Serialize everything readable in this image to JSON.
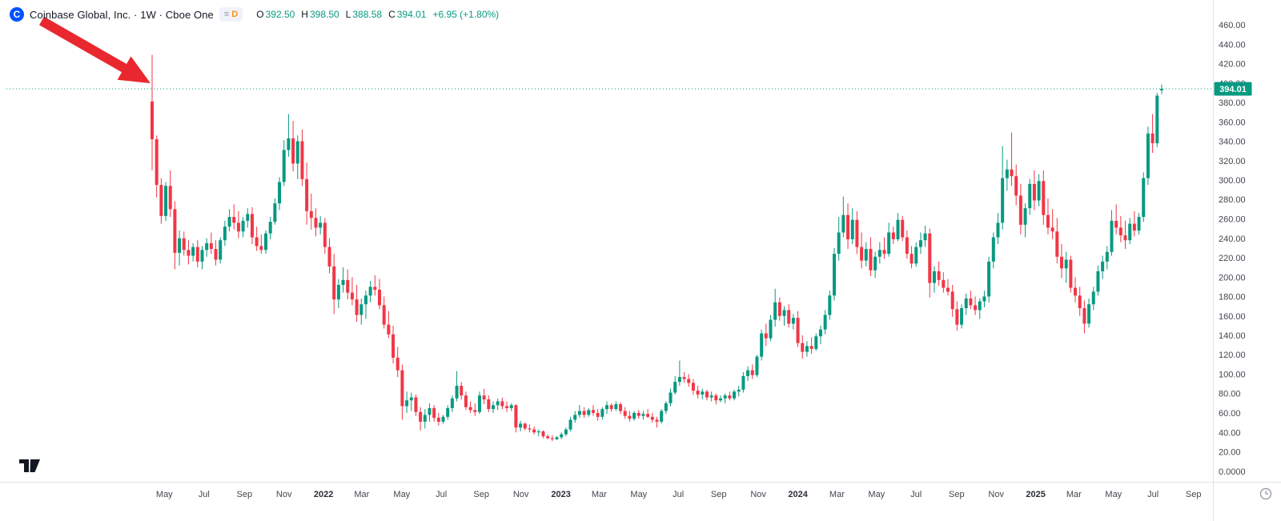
{
  "header": {
    "logo_letter": "C",
    "title": "Coinbase Global, Inc. · 1W · Cboe One",
    "data_badge": {
      "icon": "≡",
      "letter": "D"
    },
    "ohlc": {
      "open_label": "O",
      "open": "392.50",
      "high_label": "H",
      "high": "398.50",
      "low_label": "L",
      "low": "388.58",
      "close_label": "C",
      "close": "394.01",
      "change": "+6.95 (+1.80%)"
    }
  },
  "colors": {
    "up": "#089981",
    "down": "#f23645",
    "brand_blue": "#0052ff",
    "badge_d_orange": "#f7931a",
    "arrow_red": "#e8282e",
    "last_price_bg": "#089981",
    "axis_text": "#42464e"
  },
  "price_scale": {
    "labels": [
      "460.00",
      "440.00",
      "420.00",
      "400.00",
      "380.00",
      "360.00",
      "340.00",
      "320.00",
      "300.00",
      "280.00",
      "260.00",
      "240.00",
      "220.00",
      "200.00",
      "180.00",
      "160.00",
      "140.00",
      "120.00",
      "100.00",
      "80.00",
      "60.00",
      "40.00",
      "20.00",
      "0.0000"
    ],
    "last_price_label": "394.01"
  },
  "time_scale": {
    "ticks": [
      {
        "label": "May",
        "week": 2.7
      },
      {
        "label": "Jul",
        "week": 11.4
      },
      {
        "label": "Sep",
        "week": 20.3
      },
      {
        "label": "Nov",
        "week": 29
      },
      {
        "label": "2022",
        "week": 37.7,
        "major": true
      },
      {
        "label": "Mar",
        "week": 46.1
      },
      {
        "label": "May",
        "week": 54.9
      },
      {
        "label": "Jul",
        "week": 63.6
      },
      {
        "label": "Sep",
        "week": 72.4
      },
      {
        "label": "Nov",
        "week": 81.1
      },
      {
        "label": "2023",
        "week": 89.9,
        "major": true
      },
      {
        "label": "Mar",
        "week": 98.3
      },
      {
        "label": "May",
        "week": 107
      },
      {
        "label": "Jul",
        "week": 115.7
      },
      {
        "label": "Sep",
        "week": 124.6
      },
      {
        "label": "Nov",
        "week": 133.3
      },
      {
        "label": "2024",
        "week": 142,
        "major": true
      },
      {
        "label": "Mar",
        "week": 150.6
      },
      {
        "label": "May",
        "week": 159.3
      },
      {
        "label": "Jul",
        "week": 168
      },
      {
        "label": "Sep",
        "week": 176.9
      },
      {
        "label": "Nov",
        "week": 185.6
      },
      {
        "label": "2025",
        "week": 194.3,
        "major": true
      },
      {
        "label": "Mar",
        "week": 202.7
      },
      {
        "label": "May",
        "week": 211.4
      },
      {
        "label": "Jul",
        "week": 220.1
      },
      {
        "label": "Sep",
        "week": 229
      }
    ]
  },
  "chart_data": {
    "type": "candlestick",
    "title": "Coinbase Global, Inc. weekly candlestick chart",
    "symbol": "Coinbase Global, Inc.",
    "interval": "1W",
    "exchange": "Cboe One",
    "x_unit": "week_index",
    "ohlc_order": [
      "open",
      "high",
      "low",
      "close"
    ],
    "price_axis": {
      "visible_min": 0,
      "visible_max": 460,
      "tick_step": 20,
      "bottom_label": "0.0000"
    },
    "last_price": 394.01,
    "last_change": "+6.95 (+1.80%)",
    "last_candle_ohlc": {
      "open": 392.5,
      "high": 398.5,
      "low": 388.58,
      "close": 394.01
    },
    "annotations": [
      {
        "type": "red-arrow",
        "target": "first-candle"
      }
    ],
    "candles": [
      [
        381,
        429,
        310,
        342
      ],
      [
        342,
        346,
        282,
        295
      ],
      [
        295,
        302,
        255,
        263
      ],
      [
        263,
        298,
        258,
        294
      ],
      [
        294,
        310,
        262,
        270
      ],
      [
        270,
        278,
        208,
        225
      ],
      [
        225,
        248,
        212,
        240
      ],
      [
        240,
        247,
        222,
        228
      ],
      [
        228,
        238,
        213,
        222
      ],
      [
        222,
        235,
        216,
        231
      ],
      [
        231,
        238,
        210,
        216
      ],
      [
        216,
        232,
        208,
        228
      ],
      [
        228,
        240,
        221,
        235
      ],
      [
        235,
        246,
        224,
        229
      ],
      [
        229,
        238,
        212,
        218
      ],
      [
        218,
        241,
        214,
        238
      ],
      [
        238,
        258,
        232,
        252
      ],
      [
        252,
        270,
        247,
        262
      ],
      [
        262,
        275,
        249,
        256
      ],
      [
        256,
        268,
        240,
        247
      ],
      [
        247,
        262,
        241,
        258
      ],
      [
        258,
        271,
        251,
        265
      ],
      [
        265,
        272,
        234,
        241
      ],
      [
        241,
        252,
        227,
        232
      ],
      [
        232,
        244,
        224,
        228
      ],
      [
        228,
        248,
        224,
        245
      ],
      [
        245,
        262,
        239,
        257
      ],
      [
        257,
        281,
        254,
        276
      ],
      [
        276,
        303,
        269,
        298
      ],
      [
        298,
        341,
        294,
        331
      ],
      [
        331,
        368,
        324,
        343
      ],
      [
        343,
        361,
        309,
        317
      ],
      [
        317,
        346,
        301,
        340
      ],
      [
        340,
        352,
        294,
        301
      ],
      [
        301,
        318,
        254,
        268
      ],
      [
        268,
        286,
        249,
        261
      ],
      [
        261,
        271,
        242,
        251
      ],
      [
        251,
        263,
        244,
        256
      ],
      [
        256,
        261,
        224,
        231
      ],
      [
        231,
        240,
        204,
        211
      ],
      [
        211,
        224,
        162,
        177
      ],
      [
        177,
        198,
        168,
        192
      ],
      [
        192,
        210,
        184,
        197
      ],
      [
        197,
        208,
        177,
        184
      ],
      [
        184,
        200,
        171,
        177
      ],
      [
        177,
        192,
        154,
        161
      ],
      [
        161,
        178,
        151,
        172
      ],
      [
        172,
        186,
        157,
        181
      ],
      [
        181,
        196,
        174,
        190
      ],
      [
        190,
        202,
        181,
        187
      ],
      [
        187,
        198,
        167,
        171
      ],
      [
        171,
        180,
        147,
        151
      ],
      [
        151,
        165,
        137,
        141
      ],
      [
        141,
        150,
        111,
        117
      ],
      [
        117,
        128,
        97,
        104
      ],
      [
        104,
        110,
        53,
        67
      ],
      [
        67,
        82,
        60,
        73
      ],
      [
        73,
        81,
        62,
        76
      ],
      [
        76,
        79,
        57,
        61
      ],
      [
        61,
        66,
        42,
        51
      ],
      [
        51,
        64,
        44,
        58
      ],
      [
        58,
        70,
        51,
        65
      ],
      [
        65,
        68,
        51,
        55
      ],
      [
        55,
        60,
        47,
        51
      ],
      [
        51,
        58,
        49,
        56
      ],
      [
        56,
        68,
        53,
        65
      ],
      [
        65,
        78,
        61,
        75
      ],
      [
        75,
        103,
        72,
        88
      ],
      [
        88,
        92,
        74,
        78
      ],
      [
        78,
        82,
        63,
        66
      ],
      [
        66,
        72,
        60,
        63
      ],
      [
        63,
        70,
        57,
        61
      ],
      [
        61,
        82,
        59,
        78
      ],
      [
        78,
        85,
        69,
        74
      ],
      [
        74,
        78,
        61,
        64
      ],
      [
        64,
        72,
        60,
        68
      ],
      [
        68,
        75,
        63,
        72
      ],
      [
        72,
        76,
        64,
        67
      ],
      [
        67,
        72,
        61,
        65
      ],
      [
        65,
        70,
        62,
        68
      ],
      [
        68,
        69,
        40,
        45
      ],
      [
        45,
        52,
        41,
        49
      ],
      [
        49,
        50,
        42,
        44
      ],
      [
        44,
        48,
        40,
        43
      ],
      [
        43,
        46,
        38,
        40
      ],
      [
        40,
        43,
        36,
        41
      ],
      [
        41,
        42,
        34,
        36
      ],
      [
        36,
        38,
        33,
        34
      ],
      [
        34,
        37,
        31,
        33
      ],
      [
        33,
        36,
        32,
        35
      ],
      [
        35,
        40,
        33,
        38
      ],
      [
        38,
        45,
        36,
        43
      ],
      [
        43,
        56,
        41,
        53
      ],
      [
        53,
        62,
        50,
        58
      ],
      [
        58,
        68,
        55,
        62
      ],
      [
        62,
        66,
        55,
        58
      ],
      [
        58,
        65,
        56,
        63
      ],
      [
        63,
        68,
        57,
        60
      ],
      [
        60,
        64,
        52,
        56
      ],
      [
        56,
        66,
        53,
        64
      ],
      [
        64,
        72,
        59,
        68
      ],
      [
        68,
        70,
        61,
        64
      ],
      [
        64,
        72,
        62,
        69
      ],
      [
        69,
        71,
        59,
        62
      ],
      [
        62,
        66,
        54,
        57
      ],
      [
        57,
        62,
        51,
        54
      ],
      [
        54,
        62,
        52,
        60
      ],
      [
        60,
        63,
        54,
        57
      ],
      [
        57,
        62,
        53,
        59
      ],
      [
        59,
        64,
        55,
        56
      ],
      [
        56,
        60,
        50,
        53
      ],
      [
        53,
        56,
        45,
        51
      ],
      [
        51,
        64,
        49,
        62
      ],
      [
        62,
        72,
        59,
        70
      ],
      [
        70,
        85,
        67,
        81
      ],
      [
        81,
        98,
        79,
        92
      ],
      [
        92,
        114,
        88,
        97
      ],
      [
        97,
        102,
        91,
        95
      ],
      [
        95,
        100,
        87,
        91
      ],
      [
        91,
        95,
        79,
        83
      ],
      [
        83,
        88,
        75,
        79
      ],
      [
        79,
        85,
        74,
        82
      ],
      [
        82,
        84,
        73,
        76
      ],
      [
        76,
        82,
        72,
        78
      ],
      [
        78,
        80,
        69,
        73
      ],
      [
        73,
        78,
        71,
        75
      ],
      [
        75,
        80,
        70,
        78
      ],
      [
        78,
        82,
        73,
        75
      ],
      [
        75,
        84,
        73,
        82
      ],
      [
        82,
        88,
        77,
        84
      ],
      [
        84,
        102,
        81,
        98
      ],
      [
        98,
        108,
        93,
        104
      ],
      [
        104,
        110,
        95,
        99
      ],
      [
        99,
        120,
        97,
        118
      ],
      [
        118,
        146,
        114,
        142
      ],
      [
        142,
        152,
        129,
        137
      ],
      [
        137,
        161,
        134,
        156
      ],
      [
        156,
        188,
        149,
        174
      ],
      [
        174,
        179,
        155,
        160
      ],
      [
        160,
        170,
        150,
        166
      ],
      [
        166,
        172,
        148,
        152
      ],
      [
        152,
        162,
        146,
        158
      ],
      [
        158,
        165,
        128,
        132
      ],
      [
        132,
        140,
        116,
        123
      ],
      [
        123,
        134,
        118,
        129
      ],
      [
        129,
        138,
        121,
        126
      ],
      [
        126,
        142,
        124,
        139
      ],
      [
        139,
        150,
        131,
        146
      ],
      [
        146,
        166,
        141,
        161
      ],
      [
        161,
        186,
        156,
        181
      ],
      [
        181,
        230,
        176,
        224
      ],
      [
        224,
        262,
        217,
        246
      ],
      [
        246,
        283,
        241,
        264
      ],
      [
        264,
        276,
        229,
        239
      ],
      [
        239,
        271,
        234,
        259
      ],
      [
        259,
        268,
        224,
        231
      ],
      [
        231,
        246,
        209,
        217
      ],
      [
        217,
        236,
        211,
        229
      ],
      [
        229,
        241,
        201,
        207
      ],
      [
        207,
        226,
        199,
        221
      ],
      [
        221,
        236,
        214,
        228
      ],
      [
        228,
        241,
        219,
        224
      ],
      [
        224,
        256,
        221,
        246
      ],
      [
        246,
        252,
        234,
        239
      ],
      [
        239,
        266,
        237,
        259
      ],
      [
        259,
        263,
        237,
        241
      ],
      [
        241,
        248,
        219,
        224
      ],
      [
        224,
        232,
        209,
        214
      ],
      [
        214,
        236,
        211,
        231
      ],
      [
        231,
        246,
        224,
        238
      ],
      [
        238,
        253,
        231,
        245
      ],
      [
        245,
        250,
        179,
        194
      ],
      [
        194,
        211,
        184,
        206
      ],
      [
        206,
        216,
        191,
        197
      ],
      [
        197,
        205,
        184,
        189
      ],
      [
        189,
        198,
        181,
        185
      ],
      [
        185,
        192,
        159,
        167
      ],
      [
        167,
        175,
        145,
        151
      ],
      [
        151,
        172,
        147,
        168
      ],
      [
        168,
        183,
        161,
        178
      ],
      [
        178,
        186,
        167,
        171
      ],
      [
        171,
        180,
        161,
        166
      ],
      [
        166,
        178,
        157,
        175
      ],
      [
        175,
        186,
        169,
        180
      ],
      [
        180,
        221,
        174,
        216
      ],
      [
        216,
        246,
        209,
        241
      ],
      [
        241,
        266,
        234,
        256
      ],
      [
        256,
        335,
        249,
        302
      ],
      [
        302,
        321,
        289,
        311
      ],
      [
        311,
        349,
        294,
        304
      ],
      [
        304,
        316,
        274,
        284
      ],
      [
        284,
        296,
        244,
        254
      ],
      [
        254,
        276,
        241,
        271
      ],
      [
        271,
        301,
        264,
        296
      ],
      [
        296,
        310,
        269,
        279
      ],
      [
        279,
        306,
        273,
        299
      ],
      [
        299,
        310,
        254,
        264
      ],
      [
        264,
        281,
        244,
        251
      ],
      [
        251,
        270,
        239,
        247
      ],
      [
        247,
        261,
        214,
        221
      ],
      [
        221,
        234,
        199,
        209
      ],
      [
        209,
        226,
        194,
        218
      ],
      [
        218,
        222,
        184,
        189
      ],
      [
        189,
        200,
        174,
        181
      ],
      [
        181,
        190,
        160,
        168
      ],
      [
        168,
        176,
        142,
        152
      ],
      [
        152,
        178,
        148,
        172
      ],
      [
        172,
        190,
        166,
        185
      ],
      [
        185,
        212,
        181,
        206
      ],
      [
        206,
        222,
        198,
        216
      ],
      [
        216,
        232,
        208,
        226
      ],
      [
        226,
        269,
        222,
        258
      ],
      [
        258,
        275,
        244,
        251
      ],
      [
        251,
        263,
        236,
        243
      ],
      [
        243,
        258,
        229,
        238
      ],
      [
        238,
        261,
        234,
        255
      ],
      [
        255,
        268,
        242,
        248
      ],
      [
        248,
        266,
        244,
        262
      ],
      [
        262,
        308,
        257,
        302
      ],
      [
        302,
        355,
        295,
        348
      ],
      [
        348,
        368,
        328,
        338
      ],
      [
        338,
        390,
        334,
        387
      ],
      [
        392.5,
        398.5,
        388.58,
        394.01
      ]
    ]
  }
}
